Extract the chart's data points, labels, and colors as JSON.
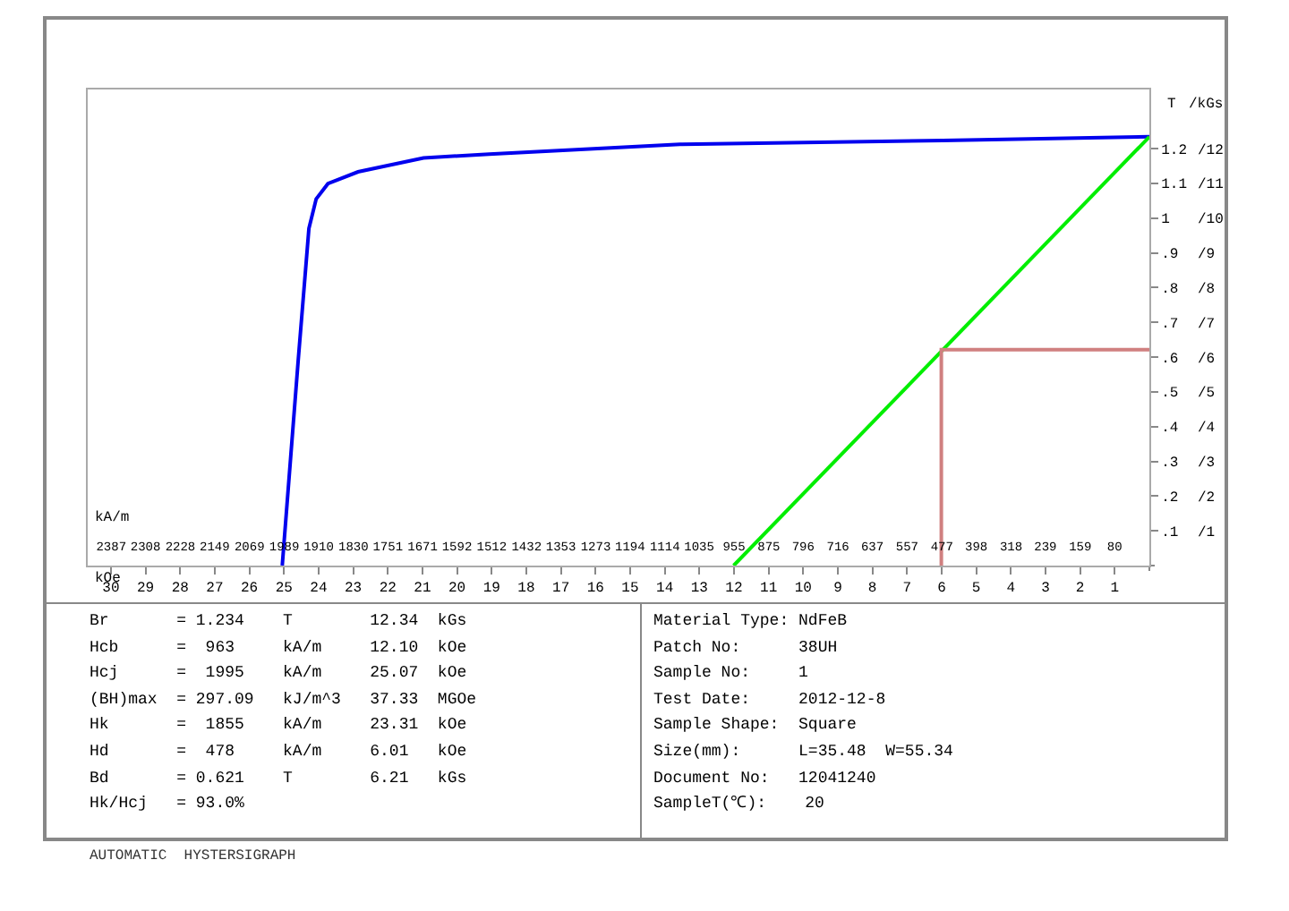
{
  "chart_data": {
    "type": "line",
    "xlabel": "kOe",
    "x2label": "kA/m",
    "ylabel": "T",
    "y2label": "/kGs",
    "xlim": [
      30.67,
      0
    ],
    "xticks": [
      30,
      29,
      28,
      27,
      26,
      25,
      24,
      23,
      22,
      21,
      20,
      19,
      18,
      17,
      16,
      15,
      14,
      13,
      12,
      11,
      10,
      9,
      8,
      7,
      6,
      5,
      4,
      3,
      2,
      1
    ],
    "x2lim": [
      2441,
      0
    ],
    "x2ticks": [
      2387,
      2308,
      2228,
      2149,
      2069,
      1989,
      1910,
      1830,
      1751,
      1671,
      1592,
      1512,
      1432,
      1353,
      1273,
      1194,
      1114,
      1035,
      955,
      875,
      796,
      716,
      637,
      557,
      477,
      398,
      318,
      239,
      159,
      80
    ],
    "ylim": [
      0,
      1.37
    ],
    "yticks": [
      {
        "value": 0.1,
        "label": ".1"
      },
      {
        "value": 0.2,
        "label": ".2"
      },
      {
        "value": 0.3,
        "label": ".3"
      },
      {
        "value": 0.4,
        "label": ".4"
      },
      {
        "value": 0.5,
        "label": ".5"
      },
      {
        "value": 0.6,
        "label": ".6"
      },
      {
        "value": 0.7,
        "label": ".7"
      },
      {
        "value": 0.8,
        "label": ".8"
      },
      {
        "value": 0.9,
        "label": ".9"
      },
      1,
      1.1,
      1.2
    ],
    "y2lim": [
      0,
      13.7
    ],
    "y2ticks": [
      {
        "value": 1,
        "label": "/1"
      },
      {
        "value": 2,
        "label": "/2"
      },
      {
        "value": 3,
        "label": "/3"
      },
      {
        "value": 4,
        "label": "/4"
      },
      {
        "value": 5,
        "label": "/5"
      },
      {
        "value": 6,
        "label": "/6"
      },
      {
        "value": 7,
        "label": "/7"
      },
      {
        "value": 8,
        "label": "/8"
      },
      {
        "value": 9,
        "label": "/9"
      },
      {
        "value": 10,
        "label": "/10"
      },
      {
        "value": 11,
        "label": "/11"
      },
      {
        "value": 12,
        "label": "/12"
      }
    ],
    "marker": "none",
    "line_style": "solid",
    "series": [
      {
        "color": "#0000ee",
        "x": [
          25.05,
          24.59,
          24.28,
          24.07,
          23.73,
          22.86,
          20.97,
          19.07,
          13.56,
          5.97,
          0
        ],
        "values": [
          0,
          0.59,
          0.97,
          1.055,
          1.099,
          1.133,
          1.173,
          1.184,
          1.212,
          1.223,
          1.234
        ]
      },
      {
        "color": "#00ee00",
        "x": [
          0,
          12.01
        ],
        "values": [
          1.234,
          0
        ]
      },
      {
        "color": "#d08080",
        "x": [
          6.01,
          6.01,
          0
        ],
        "values": [
          0,
          0.621,
          0.621
        ]
      }
    ],
    "annotations": [
      "Br       = 1.234    T        12.34  kGs",
      "Hcb      =  963     kA/m     12.10  kOe",
      "Hcj      =  1995    kA/m     25.07  kOe",
      "(BH)max  = 297.09   kJ/m^3   37.33  MGOe",
      "Hk       =  1855    kA/m     23.31  kOe",
      "Hd       =  478     kA/m     6.01   kOe",
      "Bd       = 0.621    T        6.21   kGs",
      "Hk/Hcj   = 93.0%",
      "Material Type: NdFeB",
      "Patch No:      38UH",
      "Sample No:     1",
      "Test Date:     2012-12-8",
      "Sample Shape:  Square",
      "Size(mm):      L=35.48  W=55.34",
      "Document No:   12041240",
      "SampleT(℃):    20",
      "AUTOMATIC  HYSTERSIGRAPH"
    ]
  }
}
